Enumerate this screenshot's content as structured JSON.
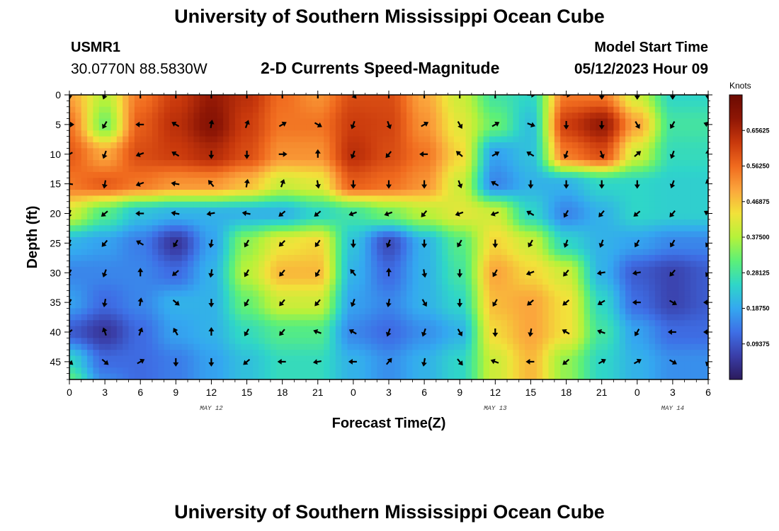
{
  "header": {
    "title": "University of Southern Mississippi Ocean Cube",
    "station_id": "USMR1",
    "coordinates": "30.0770N  88.5830W",
    "subtitle": "2-D Currents Speed-Magnitude",
    "model_start_label": "Model Start Time",
    "model_start_value": "05/12/2023 Hour 09"
  },
  "footer": {
    "title": "University of Southern Mississippi Ocean Cube"
  },
  "colors": {
    "stops": [
      "#2b1a5c",
      "#3a3ea8",
      "#3e6fe6",
      "#34a8f0",
      "#2fd6c8",
      "#5cf078",
      "#b5f23a",
      "#f2e23a",
      "#fba53c",
      "#f06a1e",
      "#c8380c",
      "#8e1605",
      "#6b0a02"
    ],
    "arrow": "#000000"
  },
  "chart_data": {
    "type": "heatmap",
    "xlabel": "Forecast Time(Z)",
    "ylabel": "Depth (ft)",
    "x_tick_labels": [
      "0",
      "3",
      "6",
      "9",
      "12",
      "15",
      "18",
      "21",
      "0",
      "3",
      "6",
      "9",
      "12",
      "15",
      "18",
      "21",
      "0",
      "3",
      "6"
    ],
    "y_tick_labels": [
      "0",
      "5",
      "10",
      "15",
      "20",
      "25",
      "30",
      "35",
      "40",
      "45"
    ],
    "y_ticks": [
      0,
      5,
      10,
      15,
      20,
      25,
      30,
      35,
      40,
      45
    ],
    "xlim": [
      0,
      54
    ],
    "ylim": [
      0,
      48
    ],
    "date_labels": [
      {
        "label": "MAY 12",
        "hour": 12
      },
      {
        "label": "MAY 13",
        "hour": 36
      },
      {
        "label": "MAY 14",
        "hour": 51
      }
    ],
    "colorbar": {
      "unit": "Knots",
      "min": 0.0,
      "max": 0.75,
      "tick_values": [
        0.09375,
        0.1875,
        0.28125,
        0.375,
        0.46875,
        0.5625,
        0.65625
      ],
      "tick_labels": [
        "0.09375",
        "0.18750",
        "0.28125",
        "0.37500",
        "0.46875",
        "0.56250",
        "0.65625"
      ]
    },
    "grid_hours": [
      0,
      3,
      6,
      9,
      12,
      15,
      18,
      21,
      24,
      27,
      30,
      33,
      36,
      39,
      42,
      45,
      48,
      51,
      54
    ],
    "grid_depths": [
      0,
      5,
      10,
      15,
      20,
      25,
      30,
      35,
      40,
      45,
      48
    ],
    "speed": [
      [
        0.5,
        0.38,
        0.55,
        0.62,
        0.68,
        0.64,
        0.56,
        0.52,
        0.6,
        0.6,
        0.5,
        0.4,
        0.28,
        0.25,
        0.55,
        0.55,
        0.4,
        0.25,
        0.25
      ],
      [
        0.55,
        0.33,
        0.58,
        0.64,
        0.7,
        0.62,
        0.55,
        0.55,
        0.62,
        0.61,
        0.52,
        0.42,
        0.32,
        0.22,
        0.62,
        0.68,
        0.5,
        0.28,
        0.28
      ],
      [
        0.58,
        0.5,
        0.6,
        0.62,
        0.65,
        0.6,
        0.52,
        0.52,
        0.64,
        0.6,
        0.55,
        0.45,
        0.18,
        0.22,
        0.55,
        0.6,
        0.4,
        0.26,
        0.26
      ],
      [
        0.55,
        0.58,
        0.55,
        0.52,
        0.52,
        0.48,
        0.4,
        0.42,
        0.58,
        0.56,
        0.52,
        0.4,
        0.15,
        0.2,
        0.2,
        0.25,
        0.25,
        0.24,
        0.24
      ],
      [
        0.4,
        0.3,
        0.22,
        0.2,
        0.2,
        0.2,
        0.2,
        0.25,
        0.28,
        0.33,
        0.38,
        0.42,
        0.4,
        0.25,
        0.15,
        0.2,
        0.25,
        0.24,
        0.24
      ],
      [
        0.2,
        0.18,
        0.14,
        0.05,
        0.18,
        0.35,
        0.43,
        0.45,
        0.22,
        0.08,
        0.2,
        0.3,
        0.45,
        0.4,
        0.25,
        0.2,
        0.18,
        0.15,
        0.15
      ],
      [
        0.15,
        0.15,
        0.15,
        0.12,
        0.2,
        0.38,
        0.48,
        0.48,
        0.2,
        0.12,
        0.2,
        0.28,
        0.5,
        0.45,
        0.4,
        0.2,
        0.1,
        0.07,
        0.1
      ],
      [
        0.18,
        0.12,
        0.15,
        0.2,
        0.2,
        0.32,
        0.4,
        0.4,
        0.18,
        0.15,
        0.2,
        0.25,
        0.48,
        0.5,
        0.44,
        0.25,
        0.12,
        0.07,
        0.1
      ],
      [
        0.1,
        0.05,
        0.12,
        0.18,
        0.2,
        0.26,
        0.3,
        0.3,
        0.15,
        0.12,
        0.16,
        0.2,
        0.45,
        0.5,
        0.44,
        0.28,
        0.18,
        0.12,
        0.12
      ],
      [
        0.25,
        0.12,
        0.12,
        0.14,
        0.18,
        0.22,
        0.26,
        0.26,
        0.2,
        0.16,
        0.2,
        0.25,
        0.4,
        0.48,
        0.35,
        0.25,
        0.2,
        0.16,
        0.16
      ],
      [
        0.3,
        0.15,
        0.12,
        0.14,
        0.18,
        0.22,
        0.26,
        0.26,
        0.2,
        0.16,
        0.2,
        0.25,
        0.4,
        0.48,
        0.35,
        0.25,
        0.2,
        0.16,
        0.16
      ]
    ],
    "arrow_hours": [
      0,
      3,
      6,
      9,
      12,
      15,
      18,
      21,
      24,
      27,
      30,
      33,
      36,
      39,
      42,
      45,
      48,
      51,
      54
    ],
    "arrow_depths": [
      0,
      5,
      10,
      15,
      20,
      25,
      30,
      35,
      40,
      45
    ],
    "arrow_directions_deg": [
      [
        180,
        200,
        0,
        0,
        0,
        0,
        0,
        0,
        140,
        0,
        0,
        0,
        0,
        90,
        90,
        180,
        180,
        180,
        180
      ],
      [
        90,
        210,
        270,
        300,
        10,
        20,
        60,
        120,
        200,
        160,
        60,
        150,
        60,
        110,
        180,
        180,
        150,
        210,
        290
      ],
      [
        240,
        200,
        250,
        300,
        180,
        180,
        90,
        0,
        200,
        220,
        270,
        310,
        60,
        300,
        200,
        160,
        50,
        200,
        0
      ],
      [
        280,
        190,
        250,
        280,
        320,
        10,
        20,
        170,
        180,
        180,
        180,
        160,
        300,
        180,
        180,
        180,
        180,
        200,
        345
      ],
      [
        200,
        230,
        270,
        280,
        260,
        280,
        230,
        230,
        250,
        250,
        220,
        250,
        250,
        300,
        210,
        220,
        230,
        220,
        300
      ],
      [
        200,
        220,
        300,
        210,
        190,
        210,
        225,
        215,
        180,
        200,
        180,
        210,
        180,
        210,
        200,
        200,
        210,
        210,
        210
      ],
      [
        210,
        200,
        0,
        230,
        190,
        210,
        220,
        210,
        320,
        0,
        170,
        180,
        210,
        250,
        220,
        260,
        260,
        220,
        210
      ],
      [
        210,
        190,
        10,
        130,
        180,
        210,
        220,
        220,
        200,
        190,
        150,
        180,
        210,
        230,
        230,
        240,
        270,
        120,
        270
      ],
      [
        230,
        340,
        20,
        330,
        0,
        210,
        220,
        290,
        300,
        200,
        200,
        150,
        180,
        190,
        300,
        290,
        210,
        270,
        270
      ],
      [
        130,
        130,
        60,
        180,
        180,
        230,
        270,
        260,
        270,
        40,
        190,
        140,
        290,
        270,
        230,
        60,
        60,
        120,
        200
      ]
    ]
  }
}
